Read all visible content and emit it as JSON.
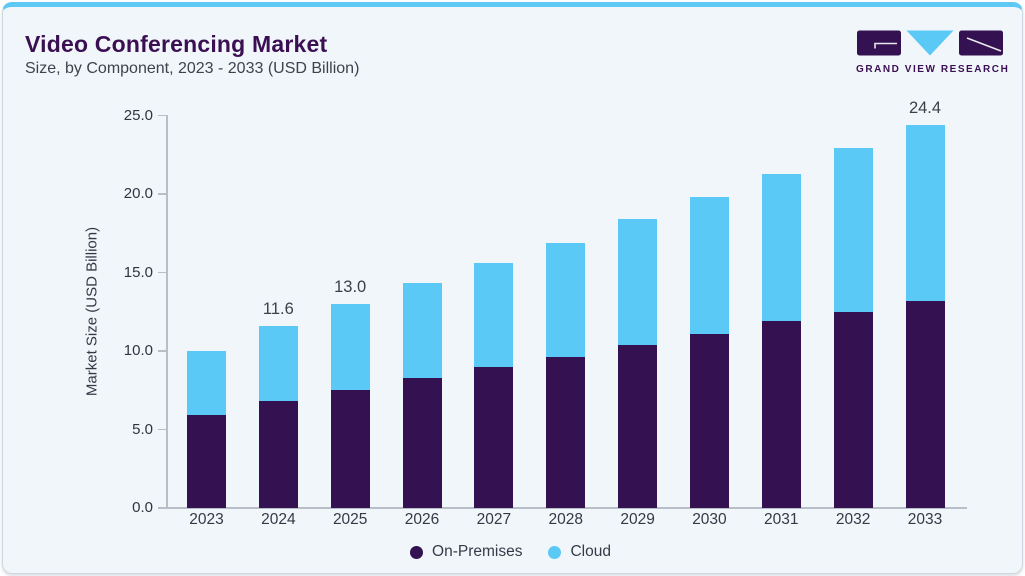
{
  "header": {
    "title": "Video Conferencing Market",
    "subtitle": "Size, by Component, 2023 - 2033 (USD Billion)"
  },
  "logo": {
    "brand": "GRAND VIEW RESEARCH"
  },
  "colors": {
    "accent_strip": "#5ec9f4",
    "title_purple": "#3b1053",
    "on_premises": "#341150",
    "cloud": "#5bc9f5",
    "card_background": "#f1f6fa",
    "axis": "#b6bfc8"
  },
  "chart_data": {
    "type": "bar",
    "stacked": true,
    "title": "Video Conferencing Market Size, by Component, 2023 - 2033 (USD Billion)",
    "categories": [
      "2023",
      "2024",
      "2025",
      "2026",
      "2027",
      "2028",
      "2029",
      "2030",
      "2031",
      "2032",
      "2033"
    ],
    "series": [
      {
        "name": "On-Premises",
        "color": "#341150",
        "values": [
          5.9,
          6.8,
          7.5,
          8.3,
          9.0,
          9.6,
          10.4,
          11.1,
          11.9,
          12.5,
          13.2
        ]
      },
      {
        "name": "Cloud",
        "color": "#5bc9f5",
        "values": [
          4.1,
          4.8,
          5.5,
          6.0,
          6.6,
          7.3,
          8.0,
          8.7,
          9.4,
          10.4,
          11.2
        ]
      }
    ],
    "totals": [
      10.0,
      11.6,
      13.0,
      14.3,
      15.6,
      16.9,
      18.4,
      19.8,
      21.3,
      22.9,
      24.4
    ],
    "bar_labels": [
      {
        "index": 1,
        "text": "11.6"
      },
      {
        "index": 2,
        "text": "13.0"
      },
      {
        "index": 10,
        "text": "24.4"
      }
    ],
    "xlabel": "",
    "ylabel": "Market Size (USD Billion)",
    "ylim": [
      0,
      25
    ],
    "ytick_labels": [
      "0.0",
      "5.0",
      "10.0",
      "15.0",
      "20.0",
      "25.0"
    ],
    "ytick_values": [
      0,
      5,
      10,
      15,
      20,
      25
    ],
    "grid": false,
    "legend_position": "bottom",
    "legend": [
      "On-Premises",
      "Cloud"
    ]
  }
}
